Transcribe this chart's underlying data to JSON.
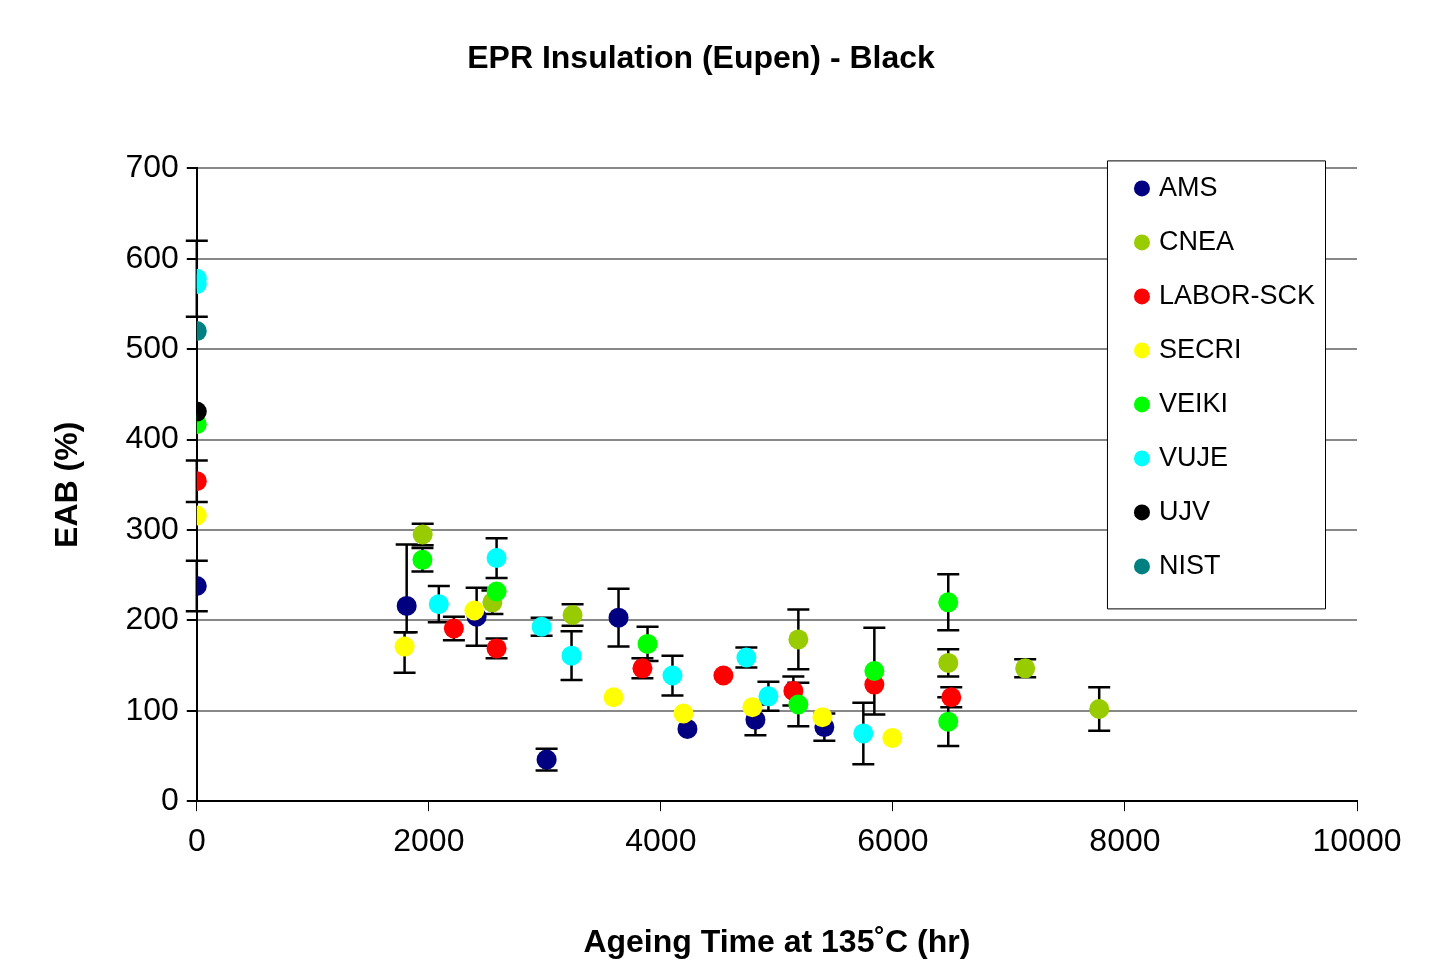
{
  "chart_data": {
    "type": "scatter",
    "title": "EPR Insulation (Eupen) - Black",
    "xlabel": "Ageing Time at 135˚C (hr)",
    "ylabel": "EAB (%)",
    "xlim": [
      0,
      10000
    ],
    "xticks": [
      0,
      2000,
      4000,
      6000,
      8000,
      10000
    ],
    "ylim": [
      0,
      700
    ],
    "yticks": [
      0,
      100,
      200,
      300,
      400,
      500,
      600,
      700
    ],
    "grid": "y",
    "legend": "top right",
    "marker": "circle",
    "series": [
      {
        "name": "AMS",
        "color": "#000080",
        "x": [
          0,
          1809,
          2412,
          3015,
          3635,
          4229,
          4815,
          5409
        ],
        "values": [
          238,
          216,
          204,
          46,
          203,
          80,
          90,
          82
        ],
        "errors": [
          28,
          [
            187,
            284
          ],
          32,
          12,
          32,
          null,
          17,
          15
        ]
      },
      {
        "name": "CNEA",
        "color": "#99cc00",
        "x": [
          1947,
          2548,
          3239,
          5185,
          6477,
          7140,
          7778
        ],
        "values": [
          295,
          220,
          206,
          179,
          153,
          147,
          102
        ],
        "errors": [
          12,
          13,
          12,
          33,
          15,
          10,
          24
        ]
      },
      {
        "name": "LABOR-SCK",
        "color": "#ff0000",
        "x": [
          0,
          2216,
          2584,
          3841,
          4539,
          5142,
          5840,
          6503
        ],
        "values": [
          354,
          191,
          169,
          147,
          139,
          122,
          129,
          115
        ],
        "errors": [
          23,
          13,
          11,
          11,
          null,
          16,
          null,
          11
        ]
      },
      {
        "name": "SECRI",
        "color": "#ffff00",
        "x": [
          0,
          1791,
          2392,
          3592,
          4195,
          4789,
          5392,
          5995
        ],
        "values": [
          316,
          171,
          211,
          115,
          97,
          104,
          93,
          70
        ],
        "errors": [
          null,
          [
            142,
            187
          ],
          null,
          null,
          null,
          null,
          null,
          null
        ]
      },
      {
        "name": "VEIKI",
        "color": "#00ff00",
        "x": [
          0,
          1945,
          2584,
          3885,
          5185,
          5840,
          6477,
          6477
        ],
        "values": [
          417,
          267,
          232,
          174,
          107,
          144,
          220,
          88
        ],
        "errors": [
          null,
          13,
          null,
          19,
          24,
          48,
          31,
          27
        ]
      },
      {
        "name": "VUJE",
        "color": "#00ffff",
        "x": [
          0,
          0,
          2086,
          2584,
          2972,
          3230,
          4100,
          4737,
          4927,
          5745
        ],
        "values": [
          578,
          572,
          218,
          269,
          193,
          161,
          139,
          159,
          116,
          75
        ],
        "errors": [
          42,
          null,
          20,
          22,
          10,
          27,
          22,
          11,
          16,
          34
        ]
      },
      {
        "name": "UJV",
        "color": "#000000",
        "x": [
          0
        ],
        "values": [
          431
        ]
      },
      {
        "name": "NIST",
        "color": "#008080",
        "x": [
          0
        ],
        "values": [
          520
        ]
      }
    ]
  }
}
